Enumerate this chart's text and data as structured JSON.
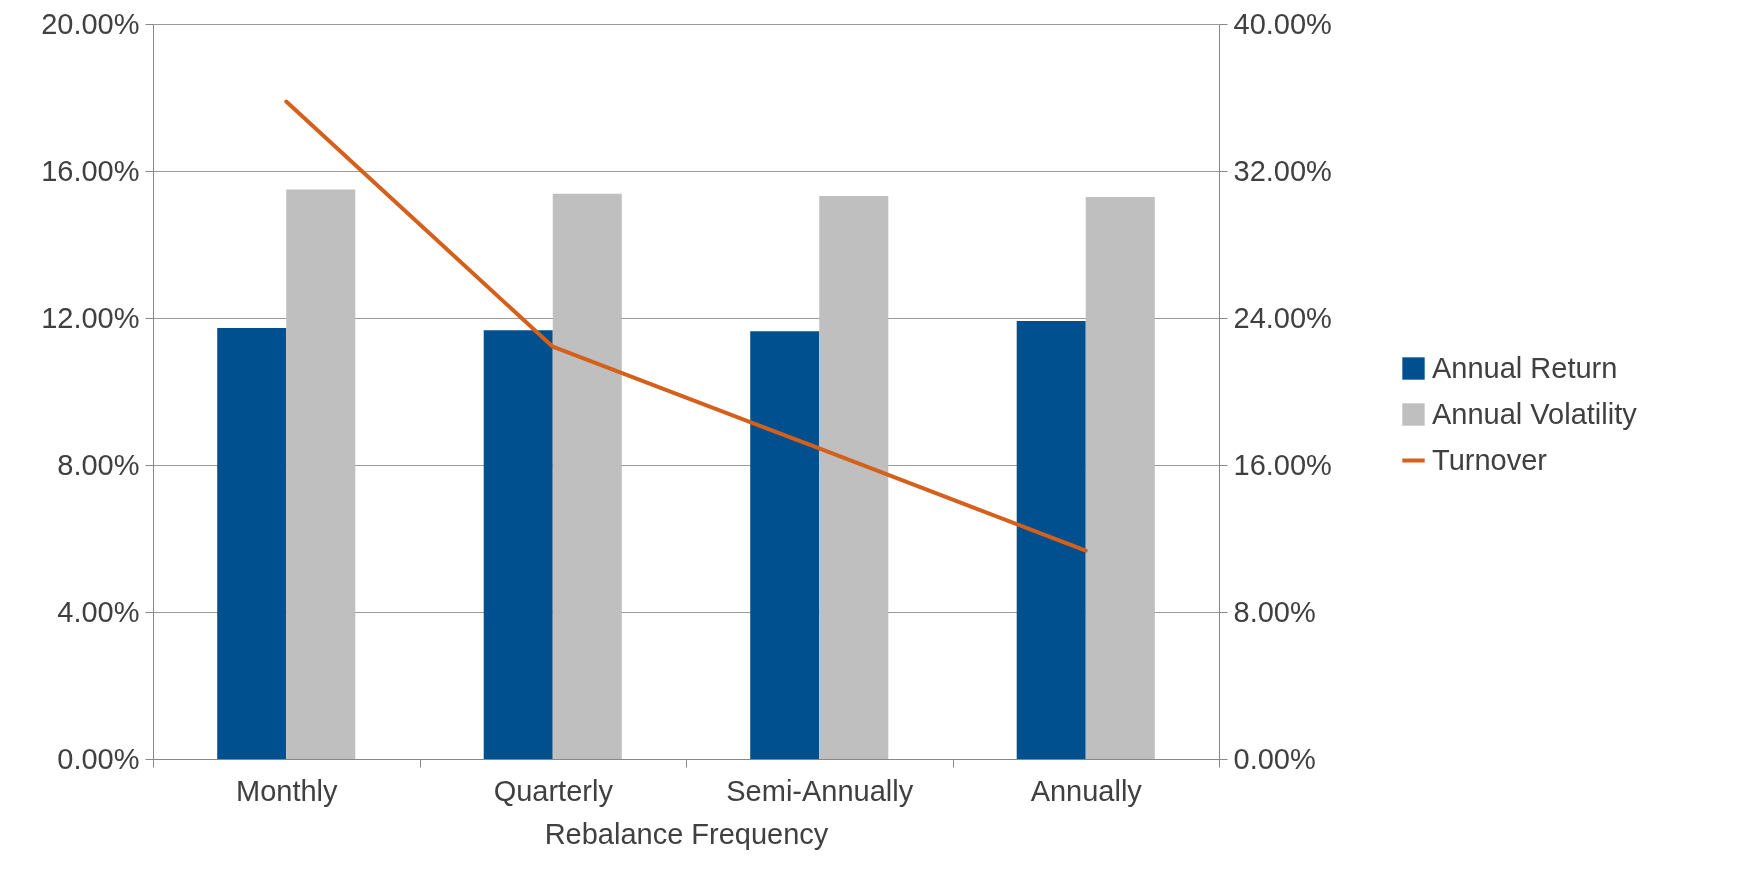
{
  "chart_data": {
    "type": "bar",
    "xlabel": "Rebalance Frequency",
    "categories": [
      "Monthly",
      "Quarterly",
      "Semi-Annually",
      "Annually"
    ],
    "series": [
      {
        "name": "Annual Return",
        "color": "#00508f",
        "values": [
          11.73,
          11.67,
          11.64,
          11.92
        ]
      },
      {
        "name": "Annual Volatility",
        "color": "#bfbfbf",
        "values": [
          15.5,
          15.38,
          15.32,
          15.29
        ]
      },
      {
        "name": "Turnover",
        "color": "#d4601c",
        "type": "line",
        "axis": "y2",
        "values": [
          35.78,
          22.44,
          16.9,
          11.34
        ]
      }
    ],
    "ylim": [
      0,
      20
    ],
    "yticks": [
      {
        "value": 0,
        "label": "0.00%"
      },
      {
        "value": 4,
        "label": "4.00%"
      },
      {
        "value": 8,
        "label": "8.00%"
      },
      {
        "value": 12,
        "label": "12.00%"
      },
      {
        "value": 16,
        "label": "16.00%"
      },
      {
        "value": 20,
        "label": "20.00%"
      }
    ],
    "y2lim": [
      0,
      40
    ],
    "y2ticks": [
      {
        "value": 0,
        "label": "0.00%"
      },
      {
        "value": 8,
        "label": "8.00%"
      },
      {
        "value": 16,
        "label": "16.00%"
      },
      {
        "value": 24,
        "label": "24.00%"
      },
      {
        "value": 32,
        "label": "32.00%"
      },
      {
        "value": 40,
        "label": "40.00%"
      }
    ],
    "grid": "y",
    "legend": "right"
  }
}
